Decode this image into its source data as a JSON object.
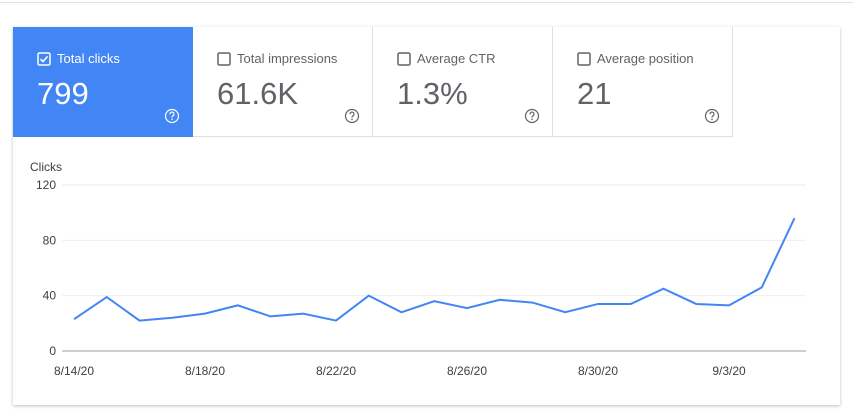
{
  "metrics": [
    {
      "label": "Total clicks",
      "value": "799",
      "selected": true
    },
    {
      "label": "Total impressions",
      "value": "61.6K",
      "selected": false
    },
    {
      "label": "Average CTR",
      "value": "1.3%",
      "selected": false
    },
    {
      "label": "Average position",
      "value": "21",
      "selected": false
    }
  ],
  "chart_data": {
    "type": "line",
    "y_label": "Clicks",
    "x": [
      "8/14/20",
      "8/15/20",
      "8/16/20",
      "8/17/20",
      "8/18/20",
      "8/19/20",
      "8/20/20",
      "8/21/20",
      "8/22/20",
      "8/23/20",
      "8/24/20",
      "8/25/20",
      "8/26/20",
      "8/27/20",
      "8/28/20",
      "8/29/20",
      "8/30/20",
      "8/31/20",
      "9/1/20",
      "9/2/20",
      "9/3/20",
      "9/4/20",
      "9/5/20"
    ],
    "xticks": [
      "8/14/20",
      "8/18/20",
      "8/22/20",
      "8/26/20",
      "8/30/20",
      "9/3/20"
    ],
    "series": [
      {
        "name": "Clicks",
        "color": "#4285f4",
        "values": [
          23,
          39,
          22,
          24,
          27,
          33,
          25,
          27,
          22,
          40,
          28,
          36,
          31,
          37,
          35,
          28,
          34,
          34,
          45,
          34,
          33,
          46,
          96
        ]
      }
    ],
    "ylim": [
      0,
      120
    ],
    "yticks": [
      0,
      40,
      80,
      120
    ],
    "grid": true
  }
}
